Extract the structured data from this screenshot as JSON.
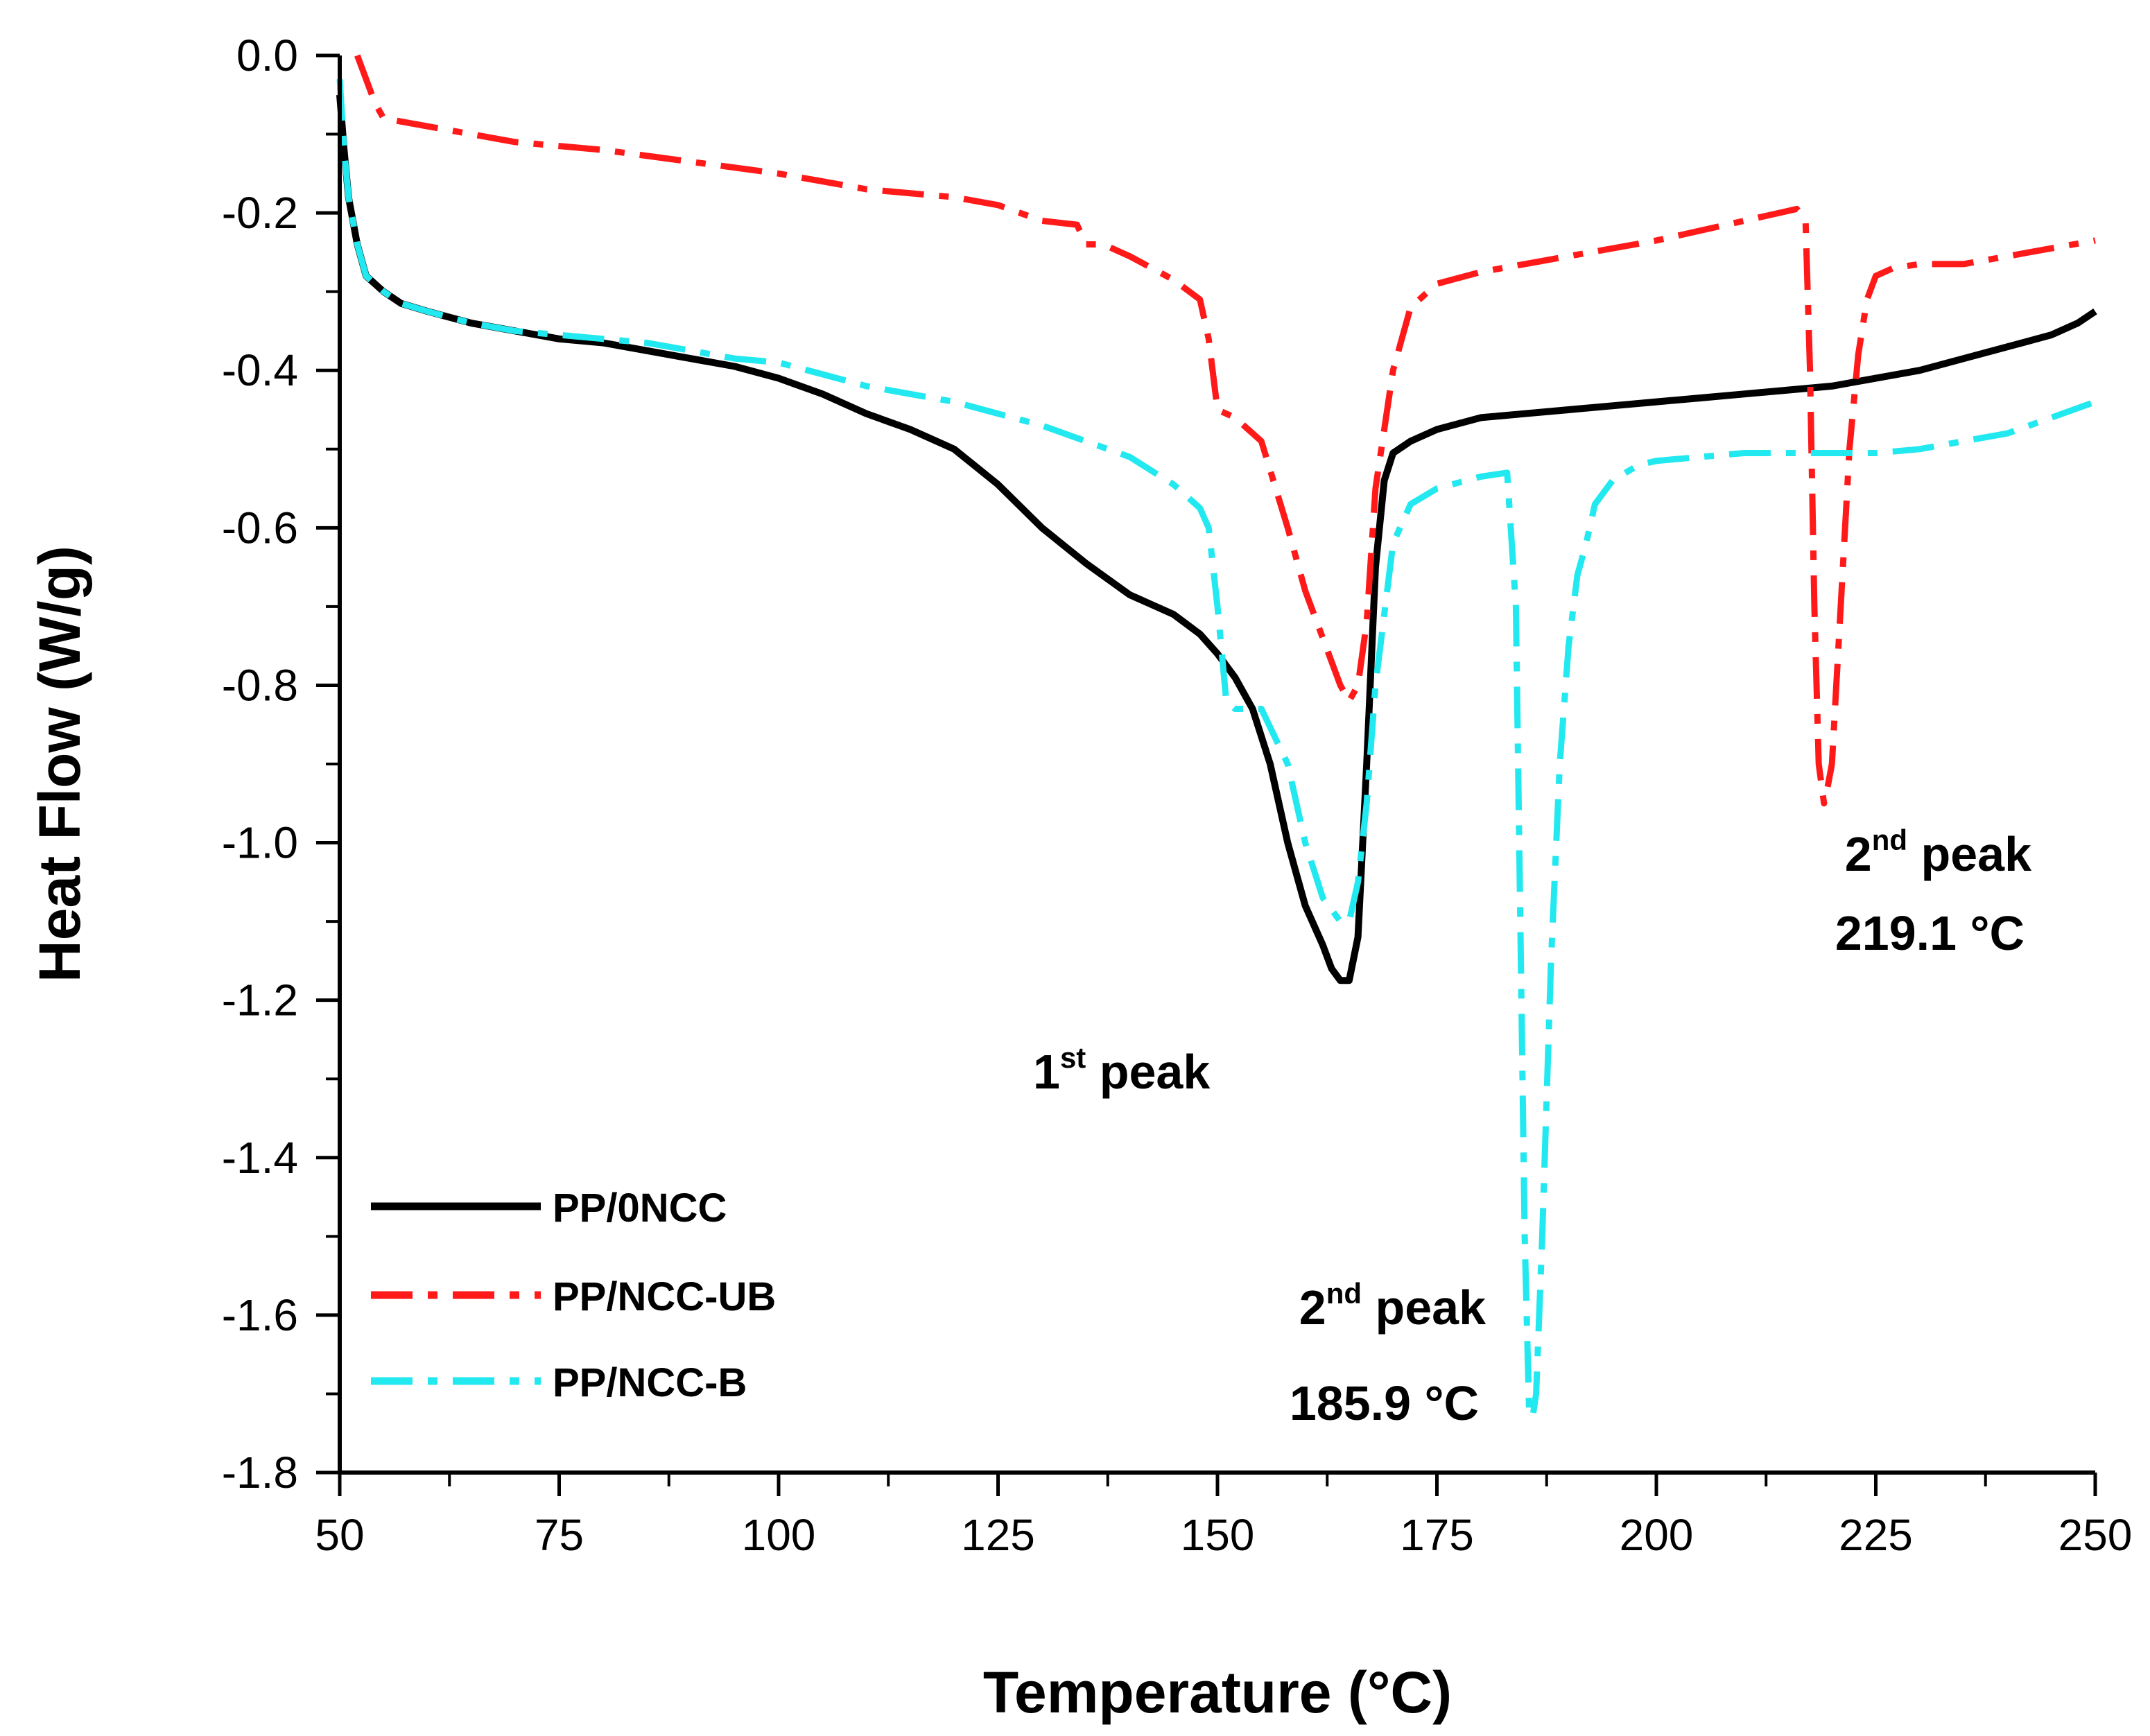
{
  "chart_data": {
    "type": "line",
    "title": "",
    "xlabel": "Temperature (°C)",
    "ylabel": "Heat Flow (W/g)",
    "xlim": [
      50,
      250
    ],
    "ylim": [
      -1.8,
      0.0
    ],
    "x_ticks": [
      50,
      75,
      100,
      125,
      150,
      175,
      200,
      225,
      250
    ],
    "x_tick_labels": [
      "50",
      "75",
      "100",
      "125",
      "150",
      "175",
      "200",
      "225",
      "250"
    ],
    "y_ticks": [
      0.0,
      -0.2,
      -0.4,
      -0.6,
      -0.8,
      -1.0,
      -1.2,
      -1.4,
      -1.6,
      -1.8
    ],
    "y_tick_labels": [
      "0.0",
      "-0.2",
      "-0.4",
      "-0.6",
      "-0.8",
      "-1.0",
      "-1.2",
      "-1.4",
      "-1.6",
      "-1.8"
    ],
    "grid": false,
    "legend_position": "bottom-left",
    "series": [
      {
        "name": "PP/0NCC",
        "color": "#000000",
        "style": "solid",
        "x": [
          50,
          50.5,
          51,
          52,
          53,
          55,
          57,
          60,
          65,
          70,
          75,
          80,
          85,
          90,
          95,
          100,
          105,
          110,
          115,
          120,
          125,
          130,
          135,
          140,
          145,
          148,
          150,
          152,
          154,
          156,
          158,
          160,
          162,
          163,
          164,
          165,
          166,
          167,
          168,
          169,
          170,
          172,
          175,
          180,
          185,
          190,
          195,
          200,
          205,
          210,
          215,
          220,
          225,
          230,
          235,
          240,
          245,
          248,
          250
        ],
        "y": [
          -0.05,
          -0.12,
          -0.18,
          -0.24,
          -0.28,
          -0.3,
          -0.315,
          -0.325,
          -0.34,
          -0.35,
          -0.36,
          -0.365,
          -0.375,
          -0.385,
          -0.395,
          -0.41,
          -0.43,
          -0.455,
          -0.475,
          -0.5,
          -0.545,
          -0.6,
          -0.645,
          -0.685,
          -0.71,
          -0.735,
          -0.76,
          -0.79,
          -0.83,
          -0.9,
          -1.0,
          -1.08,
          -1.13,
          -1.16,
          -1.175,
          -1.175,
          -1.12,
          -0.9,
          -0.65,
          -0.54,
          -0.505,
          -0.49,
          -0.475,
          -0.46,
          -0.455,
          -0.45,
          -0.445,
          -0.44,
          -0.435,
          -0.43,
          -0.425,
          -0.42,
          -0.41,
          -0.4,
          -0.385,
          -0.37,
          -0.355,
          -0.34,
          -0.325
        ]
      },
      {
        "name": "PP/NCC-UB",
        "color": "#ff1a1a",
        "style": "dashdot",
        "x": [
          52,
          53,
          54,
          55,
          60,
          70,
          80,
          90,
          100,
          110,
          120,
          125,
          130,
          134,
          135,
          136,
          137,
          140,
          145,
          148,
          149,
          150,
          151,
          152,
          155,
          158,
          160,
          162,
          163,
          164,
          165,
          166,
          167,
          168,
          170,
          172,
          175,
          180,
          190,
          200,
          210,
          214,
          216,
          217,
          217.5,
          218,
          218.5,
          219.1,
          219.5,
          220,
          221,
          222,
          223,
          224,
          225,
          227,
          230,
          235,
          240,
          245,
          250
        ],
        "y": [
          0.0,
          -0.03,
          -0.06,
          -0.08,
          -0.09,
          -0.11,
          -0.12,
          -0.135,
          -0.15,
          -0.17,
          -0.18,
          -0.19,
          -0.21,
          -0.215,
          -0.24,
          -0.24,
          -0.24,
          -0.255,
          -0.285,
          -0.31,
          -0.36,
          -0.45,
          -0.455,
          -0.46,
          -0.49,
          -0.6,
          -0.68,
          -0.74,
          -0.77,
          -0.8,
          -0.82,
          -0.8,
          -0.72,
          -0.55,
          -0.4,
          -0.32,
          -0.29,
          -0.275,
          -0.255,
          -0.235,
          -0.21,
          -0.2,
          -0.195,
          -0.21,
          -0.4,
          -0.7,
          -0.9,
          -0.95,
          -0.93,
          -0.9,
          -0.7,
          -0.5,
          -0.38,
          -0.31,
          -0.28,
          -0.27,
          -0.265,
          -0.265,
          -0.255,
          -0.245,
          -0.235
        ]
      },
      {
        "name": "PP/NCC-B",
        "color": "#22e8f0",
        "style": "dashdot",
        "x": [
          50,
          50.5,
          51,
          52,
          53,
          55,
          57,
          60,
          65,
          70,
          75,
          80,
          85,
          90,
          95,
          100,
          105,
          110,
          115,
          120,
          125,
          130,
          135,
          140,
          145,
          148,
          149,
          150,
          151,
          152,
          153,
          155,
          158,
          160,
          162,
          164,
          165,
          166,
          167,
          168,
          170,
          172,
          175,
          180,
          183,
          184,
          184.5,
          185,
          185.5,
          185.9,
          186.3,
          187,
          188,
          189,
          190,
          191,
          192,
          193,
          195,
          198,
          200,
          205,
          210,
          215,
          220,
          225,
          230,
          235,
          240,
          245,
          250
        ],
        "y": [
          -0.03,
          -0.12,
          -0.18,
          -0.24,
          -0.28,
          -0.3,
          -0.315,
          -0.325,
          -0.34,
          -0.35,
          -0.355,
          -0.36,
          -0.365,
          -0.375,
          -0.385,
          -0.39,
          -0.405,
          -0.42,
          -0.43,
          -0.44,
          -0.455,
          -0.47,
          -0.49,
          -0.51,
          -0.545,
          -0.575,
          -0.6,
          -0.7,
          -0.82,
          -0.83,
          -0.83,
          -0.83,
          -0.9,
          -1.0,
          -1.07,
          -1.1,
          -1.1,
          -1.05,
          -0.95,
          -0.8,
          -0.62,
          -0.57,
          -0.55,
          -0.535,
          -0.53,
          -0.7,
          -1.1,
          -1.5,
          -1.72,
          -1.73,
          -1.7,
          -1.5,
          -1.15,
          -0.9,
          -0.75,
          -0.66,
          -0.62,
          -0.57,
          -0.54,
          -0.52,
          -0.515,
          -0.51,
          -0.505,
          -0.505,
          -0.505,
          -0.505,
          -0.5,
          -0.49,
          -0.48,
          -0.46,
          -0.44
        ]
      }
    ],
    "annotations": [
      {
        "base": "1",
        "sup": "st",
        "rest": " peak",
        "line2": ""
      },
      {
        "base": "2",
        "sup": "nd",
        "rest": " peak",
        "line2": "185.9 °C"
      },
      {
        "base": "2",
        "sup": "nd",
        "rest": " peak",
        "line2": "219.1 °C"
      }
    ]
  }
}
